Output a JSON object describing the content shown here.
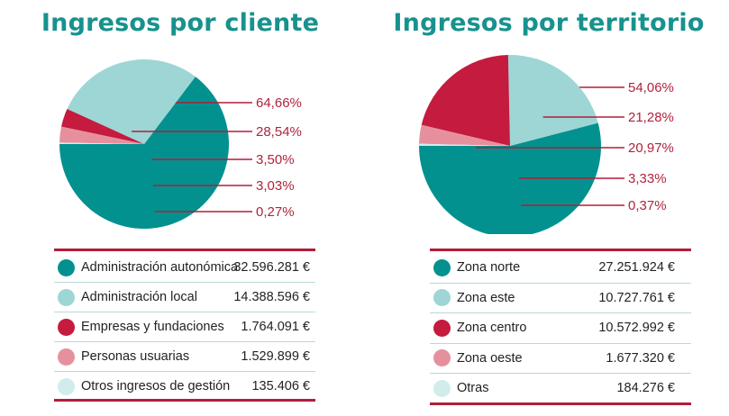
{
  "chart_data": [
    {
      "type": "pie",
      "title": "Ingresos por cliente",
      "categories": [
        "Administración autonómica",
        "Administración local",
        "Empresas y fundaciones",
        "Personas usuarias",
        "Otros ingresos de gestión"
      ],
      "values": [
        32596281,
        14388596,
        1764091,
        1529899,
        135406
      ],
      "value_labels": [
        "32.596.281 €",
        "14.388.596 €",
        "1.764.091 €",
        "1.529.899 €",
        "135.406 €"
      ],
      "percent_labels": [
        "64,66%",
        "28,54%",
        "3,50%",
        "3,03%",
        "0,27%"
      ],
      "colors": [
        "#03918f",
        "#9dd6d5",
        "#c41b3e",
        "#e6909e",
        "#d2ecec"
      ]
    },
    {
      "type": "pie",
      "title": "Ingresos por territorio",
      "categories": [
        "Zona norte",
        "Zona este",
        "Zona centro",
        "Zona oeste",
        "Otras"
      ],
      "values": [
        27251924,
        10727761,
        10572992,
        1677320,
        184276
      ],
      "value_labels": [
        "27.251.924 €",
        "10.727.761 €",
        "10.572.992 €",
        "1.677.320 €",
        "184.276 €"
      ],
      "percent_labels": [
        "54,06%",
        "21,28%",
        "20,97%",
        "3,33%",
        "0,37%"
      ],
      "colors": [
        "#03918f",
        "#9dd6d5",
        "#c41b3e",
        "#e6909e",
        "#d2ecec"
      ]
    }
  ],
  "colors": {
    "title": "#17928e",
    "rule": "#b21d3b",
    "percent_text": "#b0233c",
    "leader": "#b21d3b"
  }
}
